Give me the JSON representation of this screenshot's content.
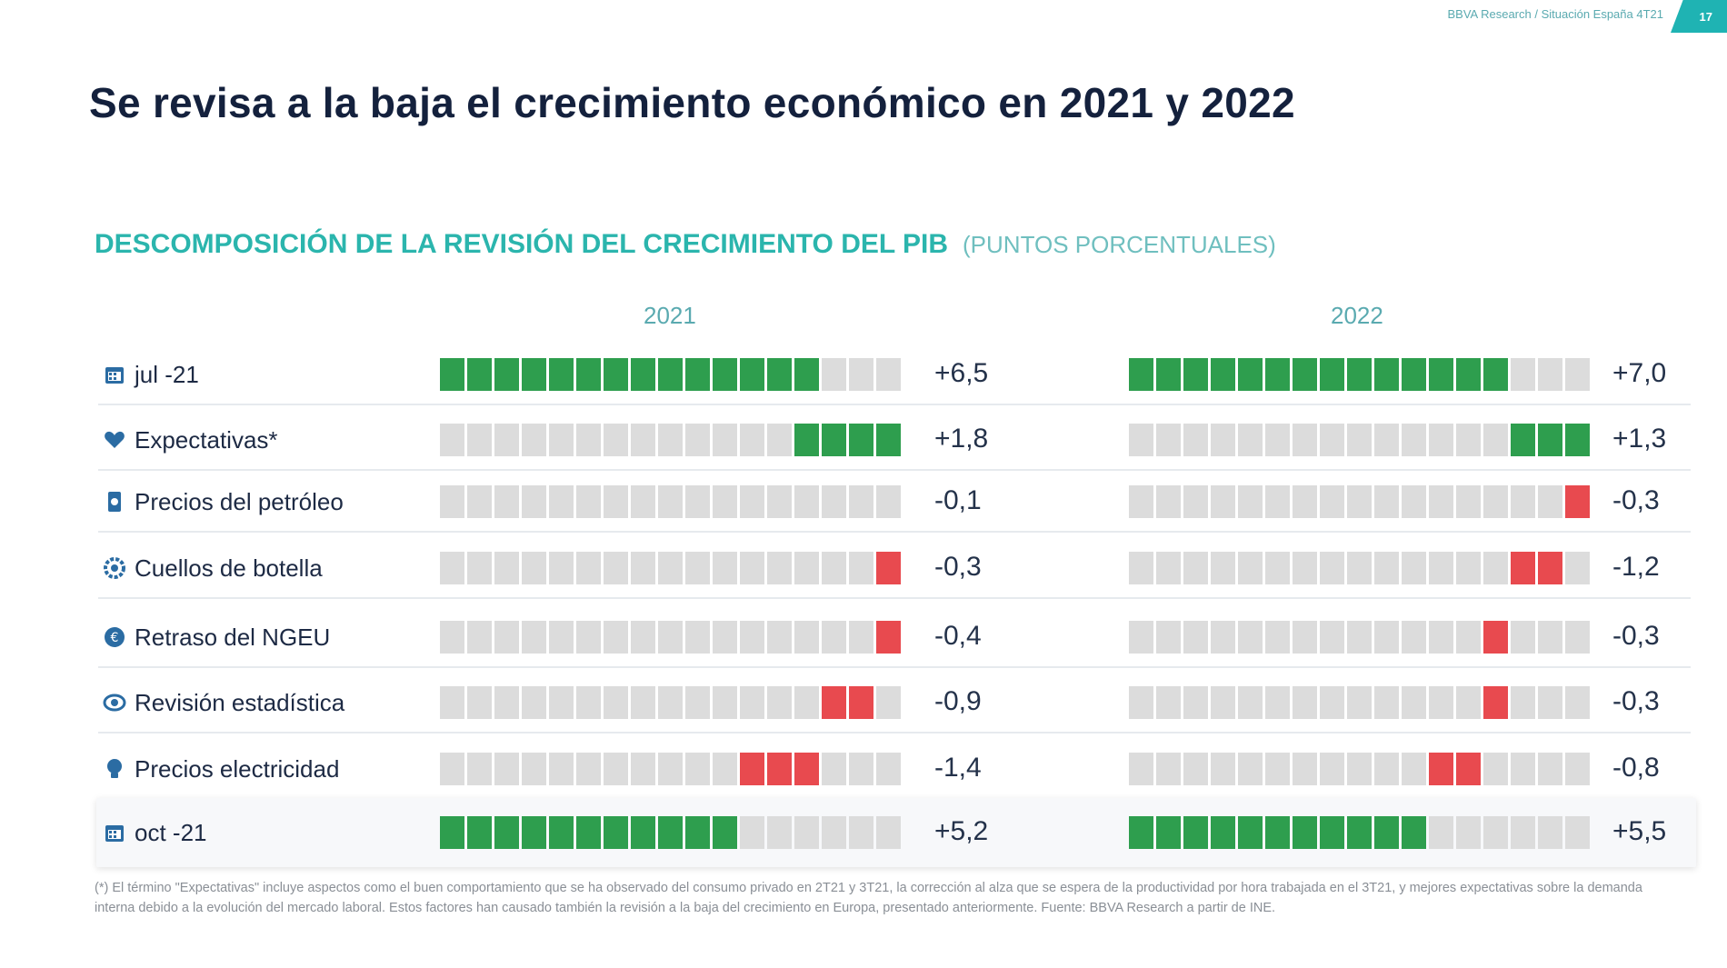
{
  "header": {
    "ref": "BBVA Research / Situación España 4T21",
    "page": "17"
  },
  "title": "Se revisa a la baja el crecimiento económico en 2021 y 2022",
  "subtitle": {
    "main": "DESCOMPOSICIÓN DE LA REVISIÓN DEL CRECIMIENTO DEL PIB",
    "unit": "(PUNTOS PORCENTUALES)"
  },
  "colors": {
    "positive": "#2e9e4e",
    "negative": "#e84a4f",
    "neutral": "#dcdcdc",
    "accent": "#2bb5ad"
  },
  "chart_data": {
    "type": "bar",
    "title": "DESCOMPOSICIÓN DE LA REVISIÓN DEL CRECIMIENTO DEL PIB",
    "unit": "(PUNTOS PORCENTUALES)",
    "years": [
      "2021",
      "2022"
    ],
    "rows": [
      {
        "label": "jul -21",
        "icon": "calendar-icon",
        "kind": "total",
        "values": [
          6.5,
          7.0
        ],
        "display": [
          "+6,5",
          "+7,0"
        ],
        "squares": [
          [
            0,
            14
          ],
          [
            0,
            14
          ]
        ]
      },
      {
        "label": "Expectativas*",
        "icon": "heart-icon",
        "kind": "positive",
        "values": [
          1.8,
          1.3
        ],
        "display": [
          "+1,8",
          "+1,3"
        ],
        "squares": [
          [
            13,
            4
          ],
          [
            14,
            3
          ]
        ]
      },
      {
        "label": "Precios del petróleo",
        "icon": "oil-icon",
        "kind": "negative",
        "values": [
          -0.1,
          -0.3
        ],
        "display": [
          "-0,1",
          "-0,3"
        ],
        "squares": [
          [
            16,
            0
          ],
          [
            16,
            1
          ]
        ]
      },
      {
        "label": "Cuellos de botella",
        "icon": "gear-icon",
        "kind": "negative",
        "values": [
          -0.3,
          -1.2
        ],
        "display": [
          "-0,3",
          "-1,2"
        ],
        "squares": [
          [
            16,
            1
          ],
          [
            14,
            2
          ]
        ]
      },
      {
        "label": "Retraso del NGEU",
        "icon": "euro-icon",
        "kind": "negative",
        "values": [
          -0.4,
          -0.3
        ],
        "display": [
          "-0,4",
          "-0,3"
        ],
        "squares": [
          [
            16,
            1
          ],
          [
            13,
            1
          ]
        ]
      },
      {
        "label": "Revisión estadística",
        "icon": "eye-icon",
        "kind": "negative",
        "values": [
          -0.9,
          -0.3
        ],
        "display": [
          "-0,9",
          "-0,3"
        ],
        "squares": [
          [
            14,
            2
          ],
          [
            13,
            1
          ]
        ]
      },
      {
        "label": "Precios electricidad",
        "icon": "lightbulb-icon",
        "kind": "negative",
        "values": [
          -1.4,
          -0.8
        ],
        "display": [
          "-1,4",
          "-0,8"
        ],
        "squares": [
          [
            11,
            3
          ],
          [
            11,
            2
          ]
        ]
      },
      {
        "label": "oct -21",
        "icon": "calendar-icon",
        "kind": "total",
        "values": [
          5.2,
          5.5
        ],
        "display": [
          "+5,2",
          "+5,5"
        ],
        "squares": [
          [
            0,
            11
          ],
          [
            0,
            11
          ]
        ]
      }
    ]
  },
  "footnote": "(*) El término \"Expectativas\" incluye aspectos como el buen comportamiento que se ha observado del consumo privado en 2T21 y 3T21, la corrección al alza que se espera de la productividad por hora trabajada en el 3T21, y mejores expectativas sobre la demanda interna debido a la evolución del mercado laboral. Estos factores han causado también la revisión a la baja del crecimiento en Europa, presentado anteriormente. Fuente: BBVA Research a partir de INE."
}
